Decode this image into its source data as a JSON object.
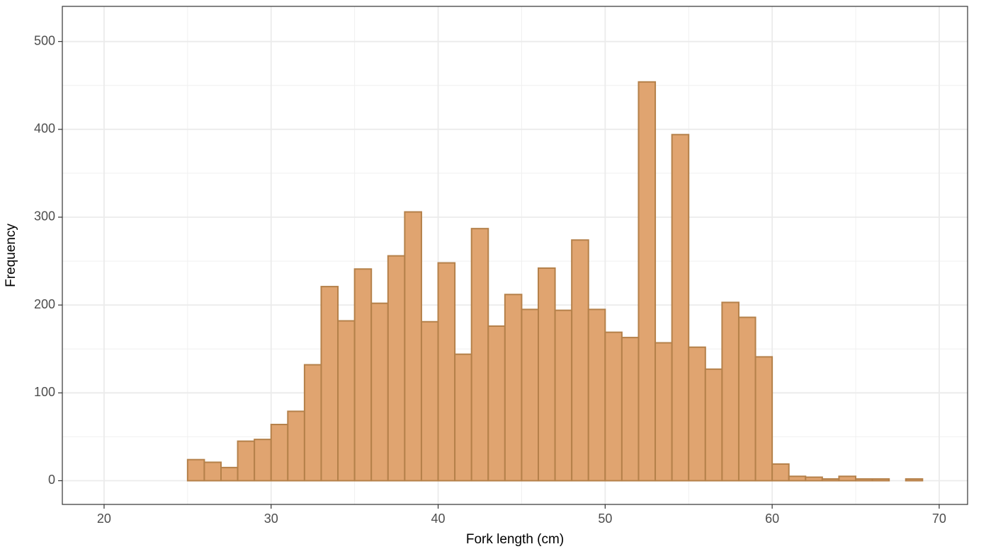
{
  "chart_data": {
    "type": "histogram",
    "x_label": "Fork length (cm)",
    "y_label": "Frequency",
    "bins": [
      25,
      26,
      27,
      28,
      29,
      30,
      31,
      32,
      33,
      34,
      35,
      36,
      37,
      38,
      39,
      40,
      41,
      42,
      43,
      44,
      45,
      46,
      47,
      48,
      49,
      50,
      51,
      52,
      53,
      54,
      55,
      56,
      57,
      58,
      59,
      60,
      61,
      62,
      63,
      64,
      65,
      66,
      67,
      68,
      69
    ],
    "values": [
      24,
      21,
      15,
      45,
      47,
      64,
      79,
      132,
      221,
      182,
      241,
      202,
      256,
      306,
      181,
      248,
      144,
      287,
      176,
      212,
      195,
      242,
      194,
      274,
      195,
      169,
      163,
      454,
      157,
      394,
      152,
      127,
      203,
      186,
      141,
      19,
      5,
      4,
      2,
      5,
      2,
      2,
      0,
      2
    ],
    "color": "#e0a470",
    "edge_color": "#b5814a",
    "xlim": [
      17.5,
      71.7
    ],
    "xticks": [
      20,
      30,
      40,
      50,
      60,
      70
    ],
    "ylim": [
      -27,
      540
    ],
    "yticks": [
      0,
      100,
      200,
      300,
      400,
      500
    ],
    "grid": true,
    "minor_grid": true
  }
}
